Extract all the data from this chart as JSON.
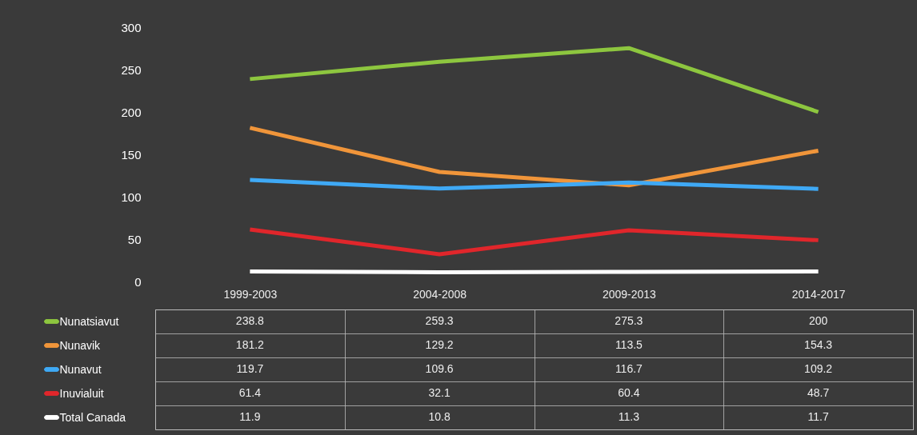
{
  "chart_data": {
    "type": "line",
    "categories": [
      "1999-2003",
      "2004-2008",
      "2009-2013",
      "2014-2017"
    ],
    "series": [
      {
        "name": "Nunatsiavut",
        "color": "#8dc63f",
        "values": [
          238.8,
          259.3,
          275.3,
          200
        ]
      },
      {
        "name": "Nunavik",
        "color": "#f0953a",
        "values": [
          181.2,
          129.2,
          113.5,
          154.3
        ]
      },
      {
        "name": "Nunavut",
        "color": "#3fa9f5",
        "values": [
          119.7,
          109.6,
          116.7,
          109.2
        ]
      },
      {
        "name": "Inuvialuit",
        "color": "#e0262b",
        "values": [
          61.4,
          32.1,
          60.4,
          48.7
        ]
      },
      {
        "name": "Total Canada",
        "color": "#ffffff",
        "values": [
          11.9,
          10.8,
          11.3,
          11.7
        ]
      }
    ],
    "ylim": [
      0,
      300
    ],
    "yticks": [
      0,
      50,
      100,
      150,
      200,
      250,
      300
    ],
    "data_labels": true,
    "legend": "bottom"
  }
}
